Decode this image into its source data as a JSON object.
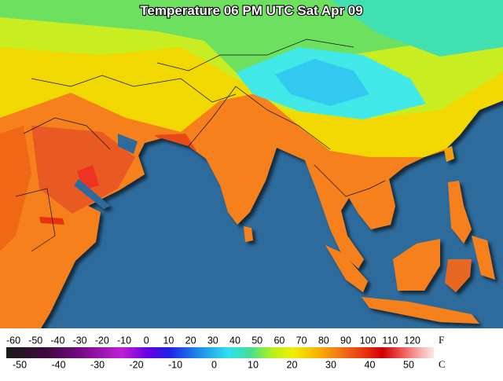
{
  "header": {
    "title": "Temperature 06 PM UTC Sat Apr 09"
  },
  "legend": {
    "fahrenheit": {
      "unit": "F",
      "labels": [
        "-60",
        "-50",
        "-40",
        "-30",
        "-20",
        "-10",
        "0",
        "10",
        "20",
        "30",
        "40",
        "50",
        "60",
        "70",
        "80",
        "90",
        "100",
        "110",
        "120"
      ]
    },
    "celsius": {
      "unit": "C",
      "labels": [
        "-50",
        "-40",
        "-30",
        "-20",
        "-10",
        "0",
        "10",
        "20",
        "30",
        "40",
        "50"
      ]
    }
  }
}
